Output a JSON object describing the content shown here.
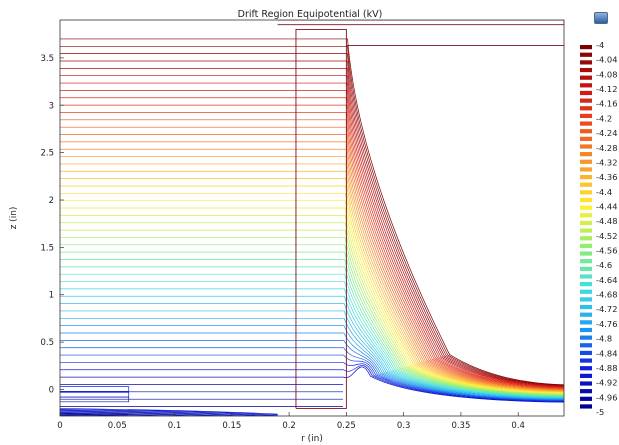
{
  "chart_data": {
    "type": "contour",
    "title": "Drift Region Equipotential (kV)",
    "xlabel": "r (in)",
    "ylabel": "z (in)",
    "xlim": [
      0,
      0.44
    ],
    "ylim": [
      -0.28,
      3.9
    ],
    "xticks": [
      "0",
      "0.05",
      "0.1",
      "0.15",
      "0.2",
      "0.25",
      "0.3",
      "0.35",
      "0.4"
    ],
    "xtick_values": [
      0,
      0.05,
      0.1,
      0.15,
      0.2,
      0.25,
      0.3,
      0.35,
      0.4
    ],
    "yticks": [
      "0",
      "0.5",
      "1",
      "1.5",
      "2",
      "2.5",
      "3",
      "3.5"
    ],
    "ytick_values": [
      0,
      0.5,
      1,
      1.5,
      2,
      2.5,
      3,
      3.5
    ],
    "legend_placement": "right",
    "colorbar": {
      "min": -5,
      "max": -4,
      "labels": [
        "-4",
        "-4.04",
        "-4.08",
        "-4.12",
        "-4.16",
        "-4.2",
        "-4.24",
        "-4.28",
        "-4.32",
        "-4.36",
        "-4.4",
        "-4.44",
        "-4.48",
        "-4.52",
        "-4.56",
        "-4.6",
        "-4.64",
        "-4.68",
        "-4.72",
        "-4.76",
        "-4.8",
        "-4.84",
        "-4.88",
        "-4.92",
        "-4.96",
        "-5"
      ],
      "colors": [
        "#7b0000",
        "#c81414",
        "#f05020",
        "#f8a030",
        "#fff030",
        "#90ee70",
        "#40e0e0",
        "#20a0f0",
        "#1020e0",
        "#000090"
      ]
    },
    "contour_levels": {
      "min": -5,
      "max": -4,
      "count": 51
    },
    "geometry_outlines": [
      {
        "x": [
          0.206,
          0.206,
          0.25,
          0.25,
          0.206
        ],
        "y": [
          -0.2,
          3.8,
          3.8,
          -0.2,
          -0.2
        ]
      },
      {
        "x": [
          0.19,
          0.44,
          0.44,
          0.19
        ],
        "y": [
          3.9,
          3.9,
          3.85,
          3.85
        ]
      },
      {
        "x": [
          0.25,
          0.44
        ],
        "y": [
          3.63,
          3.63
        ]
      }
    ],
    "grid": false
  },
  "ui": {
    "corner_button_icon": "image-icon"
  }
}
